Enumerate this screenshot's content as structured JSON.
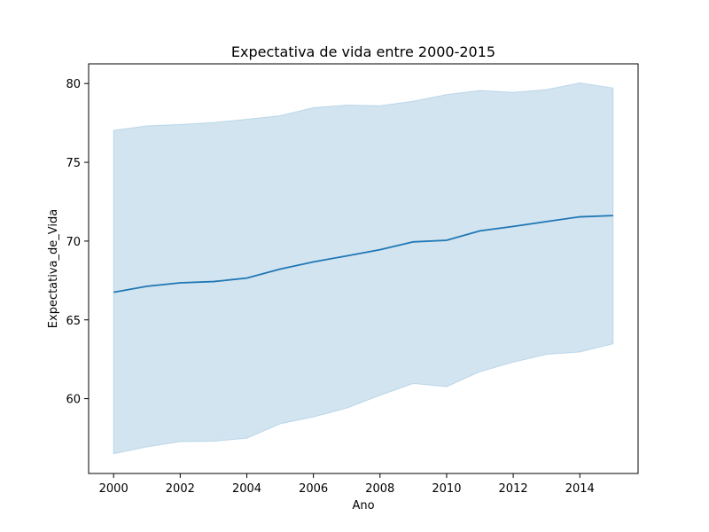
{
  "chart_data": {
    "type": "line",
    "title": "Expectativa de vida entre 2000-2015",
    "xlabel": "Ano",
    "ylabel": "Expectativa_de_Vida",
    "xlim": [
      1999.25,
      2015.75
    ],
    "ylim": [
      55.25,
      81.25
    ],
    "xticks": [
      2000,
      2002,
      2004,
      2006,
      2008,
      2010,
      2012,
      2014
    ],
    "yticks": [
      60,
      65,
      70,
      75,
      80
    ],
    "grid": false,
    "colors": {
      "line": "#1f77b4",
      "band": "#1f77b4"
    },
    "x": [
      2000,
      2001,
      2002,
      2003,
      2004,
      2005,
      2006,
      2007,
      2008,
      2009,
      2010,
      2011,
      2012,
      2013,
      2014,
      2015
    ],
    "series": [
      {
        "values": [
          66.75,
          67.13,
          67.35,
          67.43,
          67.65,
          68.22,
          68.68,
          69.06,
          69.45,
          69.95,
          70.05,
          70.65,
          70.93,
          71.24,
          71.54,
          71.62
        ],
        "band_upper": [
          77.03,
          77.32,
          77.4,
          77.53,
          77.73,
          77.96,
          78.47,
          78.63,
          78.59,
          78.88,
          79.3,
          79.56,
          79.44,
          79.62,
          80.04,
          79.72
        ],
        "band_lower": [
          56.5,
          56.94,
          57.27,
          57.29,
          57.49,
          58.4,
          58.84,
          59.4,
          60.21,
          60.96,
          60.76,
          61.71,
          62.31,
          62.81,
          62.96,
          63.48
        ]
      }
    ]
  }
}
